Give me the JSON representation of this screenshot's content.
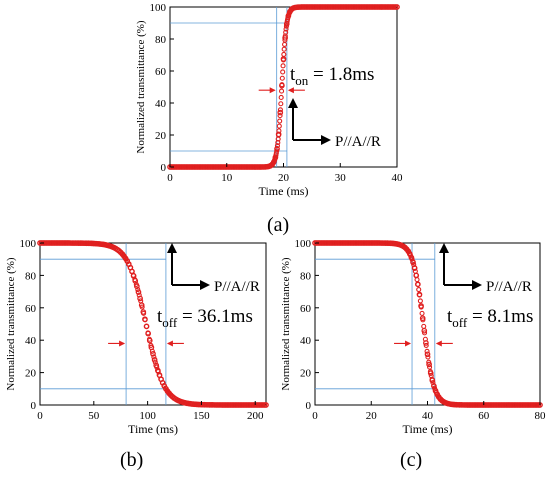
{
  "captions": {
    "a": "(a)",
    "b": "(b)",
    "c": "(c)"
  },
  "colors": {
    "curve": "#e02020",
    "guide": "#5b9bd5",
    "arrow": "#e02020",
    "axis": "#000000"
  },
  "chart_data": [
    {
      "id": "a",
      "type": "line",
      "xlabel": "Time (ms)",
      "ylabel": "Normalized transmittance (%)",
      "xlim": [
        0,
        40
      ],
      "ylim": [
        0,
        100
      ],
      "xticks": [
        0,
        10,
        20,
        30,
        40
      ],
      "yticks": [
        0,
        20,
        40,
        60,
        80,
        100
      ],
      "transition": {
        "direction": "rise",
        "start": 18.8,
        "end": 20.6
      },
      "guide_levels": [
        10,
        90
      ],
      "guide_times": [
        18.8,
        20.6
      ],
      "annotation": {
        "main": "t",
        "sub": "on",
        "rest": " = 1.8ms"
      },
      "polarizer": "P//A//R"
    },
    {
      "id": "b",
      "type": "line",
      "xlabel": "Time (ms)",
      "ylabel": "Normalized transmittance (%)",
      "xlim": [
        0,
        210
      ],
      "ylim": [
        0,
        100
      ],
      "xticks": [
        0,
        50,
        100,
        150,
        200
      ],
      "yticks": [
        0,
        20,
        40,
        60,
        80,
        100
      ],
      "transition": {
        "direction": "fall",
        "start": 80,
        "end": 117
      },
      "guide_levels": [
        90,
        10
      ],
      "guide_times": [
        80,
        117
      ],
      "annotation": {
        "main": "t",
        "sub": "off",
        "rest": " = 36.1ms"
      },
      "polarizer": "P//A//R"
    },
    {
      "id": "c",
      "type": "line",
      "xlabel": "Time (ms)",
      "ylabel": "Normalized transmittance (%)",
      "xlim": [
        0,
        80
      ],
      "ylim": [
        0,
        100
      ],
      "xticks": [
        0,
        20,
        40,
        60,
        80
      ],
      "yticks": [
        0,
        20,
        40,
        60,
        80,
        100
      ],
      "transition": {
        "direction": "fall",
        "start": 34.5,
        "end": 42.6
      },
      "guide_levels": [
        90,
        10
      ],
      "guide_times": [
        34.5,
        42.6
      ],
      "annotation": {
        "main": "t",
        "sub": "off",
        "rest": " = 8.1ms"
      },
      "polarizer": "P//A//R"
    }
  ]
}
